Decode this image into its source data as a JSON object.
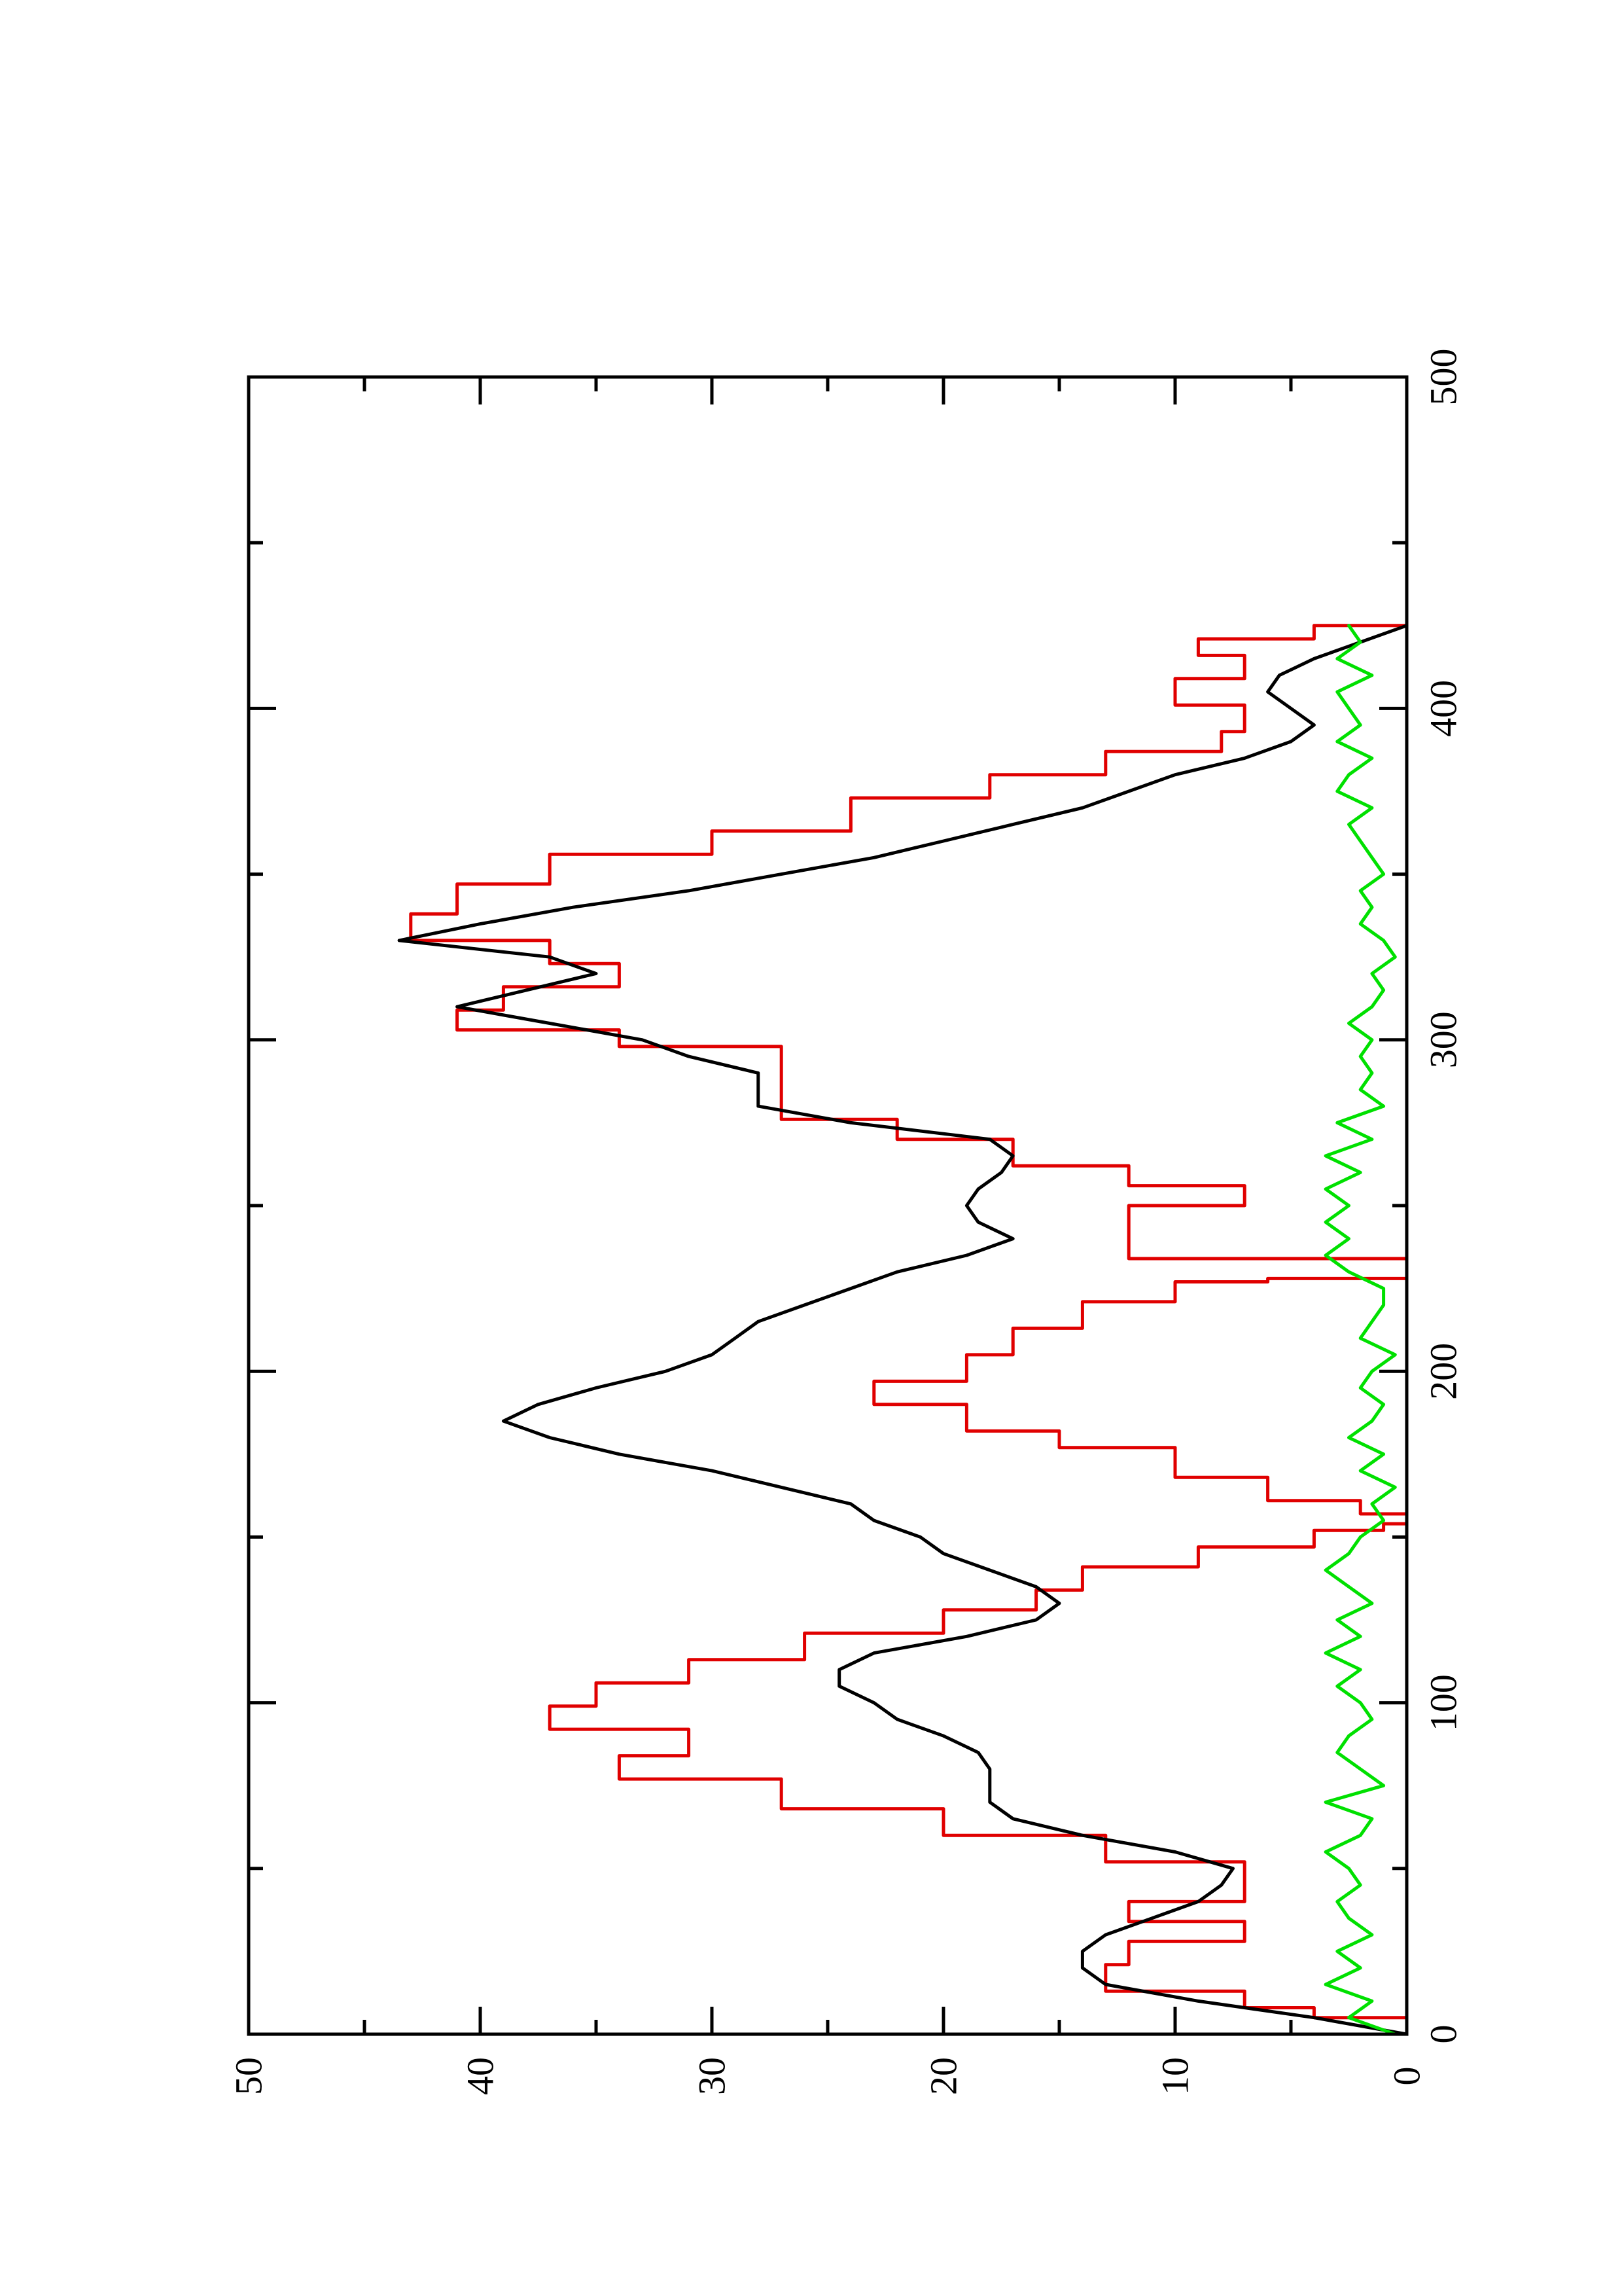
{
  "chart_data": {
    "type": "line",
    "rotated": "90-degrees-counterclockwise",
    "title": "",
    "xlabel": "",
    "ylabel": "",
    "xlim": [
      0,
      500
    ],
    "ylim": [
      0,
      50
    ],
    "grid": false,
    "x_ticks_major": [
      "0",
      "100",
      "200",
      "300",
      "400",
      "500"
    ],
    "y_ticks_major": [
      "0",
      "10",
      "20",
      "30",
      "40",
      "50"
    ],
    "x_tick_values_major": [
      0,
      100,
      200,
      300,
      400,
      500
    ],
    "x_tick_values_minor": [
      50,
      150,
      250,
      350,
      450
    ],
    "y_tick_values_major": [
      0,
      10,
      20,
      30,
      40,
      50
    ],
    "y_tick_values_minor": [
      5,
      15,
      25,
      35,
      45
    ],
    "series": [
      {
        "color": "#e00000",
        "step": true,
        "x": [
          0,
          5,
          8,
          13,
          21,
          28,
          34,
          40,
          48,
          52,
          60,
          68,
          77,
          84,
          92,
          99,
          106,
          113,
          121,
          128,
          134,
          141,
          147,
          152,
          154,
          157,
          161,
          168,
          177,
          182,
          190,
          197,
          205,
          213,
          221,
          227,
          228,
          234,
          242,
          250,
          256,
          262,
          270,
          276,
          286,
          298,
          303,
          309,
          316,
          323,
          330,
          338,
          347,
          356,
          363,
          373,
          380,
          387,
          393,
          401,
          409,
          416,
          421,
          425
        ],
        "y": [
          0,
          4,
          7,
          13,
          12,
          7,
          12,
          7,
          7,
          13,
          20,
          27,
          34,
          31,
          37,
          35,
          31,
          26,
          20,
          16,
          14,
          9,
          4,
          1,
          0,
          2,
          6,
          10,
          15,
          19,
          23,
          19,
          17,
          14,
          10,
          6,
          0,
          12,
          12,
          7,
          12,
          17,
          22,
          27,
          27,
          34,
          41,
          39,
          34,
          37,
          43,
          41,
          37,
          30,
          24,
          18,
          13,
          8,
          7,
          10,
          7,
          9,
          4,
          0
        ]
      },
      {
        "color": "#000000",
        "step": false,
        "x": [
          0,
          5,
          10,
          15,
          20,
          25,
          30,
          35,
          40,
          45,
          50,
          55,
          60,
          65,
          70,
          75,
          80,
          85,
          90,
          95,
          100,
          105,
          110,
          115,
          120,
          125,
          130,
          135,
          140,
          145,
          150,
          155,
          160,
          165,
          170,
          175,
          180,
          185,
          190,
          195,
          200,
          205,
          210,
          215,
          220,
          225,
          230,
          235,
          240,
          245,
          250,
          255,
          260,
          265,
          270,
          275,
          280,
          285,
          290,
          295,
          300,
          305,
          310,
          315,
          320,
          325,
          330,
          335,
          340,
          345,
          350,
          355,
          360,
          365,
          370,
          375,
          380,
          385,
          390,
          395,
          400,
          405,
          410,
          415,
          420,
          425
        ],
        "y": [
          0,
          4,
          9,
          13,
          14,
          14,
          13,
          11,
          9,
          8,
          7.5,
          10,
          14,
          17,
          18,
          18,
          18,
          18.5,
          20,
          22,
          23,
          24.5,
          24.5,
          23,
          19,
          16,
          15,
          16,
          18,
          20,
          21,
          23,
          24,
          27,
          30,
          34,
          37,
          39,
          37.5,
          35,
          32,
          30,
          29,
          28,
          26,
          24,
          22,
          19,
          17,
          18.5,
          19,
          18.5,
          17.5,
          17,
          18,
          24,
          28,
          28,
          28,
          31,
          33,
          37,
          41,
          38,
          35,
          37,
          43.5,
          40,
          36,
          31,
          27,
          23,
          20,
          17,
          14,
          12,
          10,
          7,
          5,
          4,
          5,
          6,
          5.5,
          4,
          2,
          0
        ]
      },
      {
        "color": "#00e000",
        "step": false,
        "x": [
          0,
          5,
          10,
          15,
          20,
          25,
          30,
          35,
          40,
          45,
          50,
          55,
          60,
          65,
          70,
          75,
          80,
          85,
          90,
          95,
          100,
          105,
          110,
          115,
          120,
          125,
          130,
          135,
          140,
          145,
          150,
          155,
          160,
          165,
          170,
          175,
          180,
          185,
          190,
          195,
          200,
          205,
          210,
          215,
          220,
          225,
          230,
          235,
          240,
          245,
          250,
          255,
          260,
          265,
          270,
          275,
          280,
          285,
          290,
          295,
          300,
          305,
          310,
          315,
          320,
          325,
          330,
          335,
          340,
          345,
          350,
          355,
          360,
          365,
          370,
          375,
          380,
          385,
          390,
          395,
          400,
          405,
          410,
          415,
          420,
          425
        ],
        "y": [
          0.5,
          2.5,
          1.5,
          3.5,
          2,
          3,
          1.5,
          2.5,
          3,
          2,
          2.5,
          3.5,
          2,
          1.5,
          3.5,
          1,
          2,
          3,
          2.5,
          1.5,
          2,
          3,
          2,
          3.5,
          2,
          3,
          1.5,
          2.5,
          3.5,
          2.5,
          2,
          1,
          1.5,
          0.5,
          2,
          1,
          2.5,
          1.5,
          1,
          2,
          1.5,
          0.5,
          2,
          1.5,
          1,
          1,
          2.5,
          3.5,
          2.5,
          3.5,
          2.5,
          3.5,
          2,
          3.5,
          1.5,
          3,
          1,
          2,
          1.5,
          2,
          1.5,
          2.5,
          1.5,
          1,
          1.5,
          0.5,
          1,
          2,
          1.5,
          2,
          1,
          1.5,
          2,
          2.5,
          1.5,
          3,
          2.5,
          1.5,
          3,
          2,
          2.5,
          3,
          1.5,
          3,
          2,
          2.5
        ]
      }
    ]
  }
}
